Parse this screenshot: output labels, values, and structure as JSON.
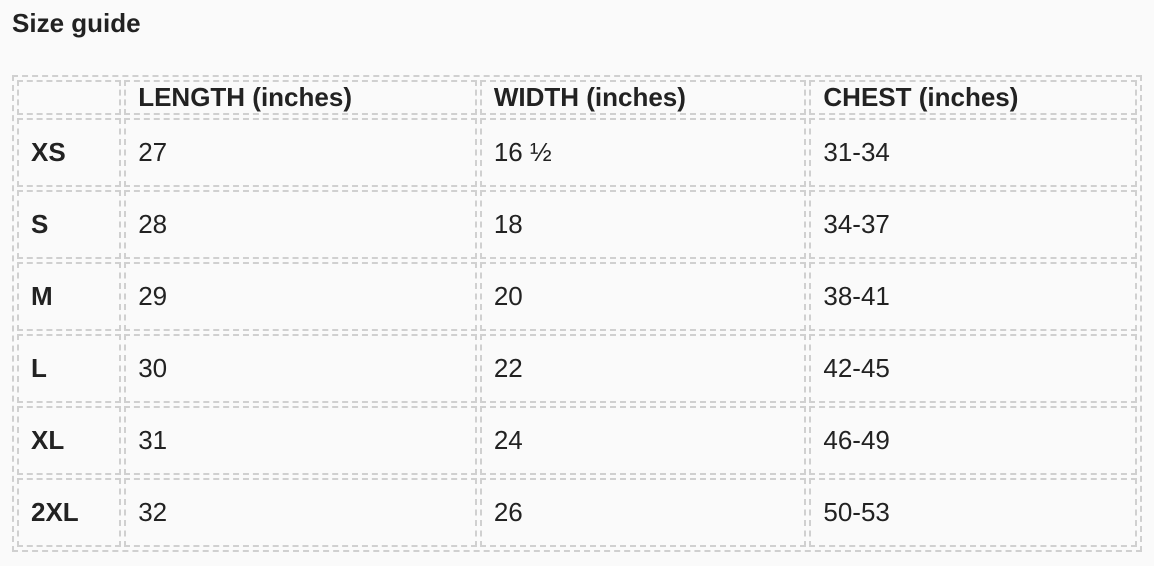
{
  "title": "Size guide",
  "table": {
    "columns": [
      "LENGTH (inches)",
      "WIDTH (inches)",
      "CHEST (inches)"
    ],
    "rows": [
      [
        "XS",
        "27",
        "16 ½",
        "31-34"
      ],
      [
        "S",
        "28",
        "18",
        "34-37"
      ],
      [
        "M",
        "29",
        "20",
        "38-41"
      ],
      [
        "L",
        "30",
        "22",
        "42-45"
      ],
      [
        "XL",
        "31",
        "24",
        "46-49"
      ],
      [
        "2XL",
        "32",
        "26",
        "50-53"
      ]
    ]
  }
}
